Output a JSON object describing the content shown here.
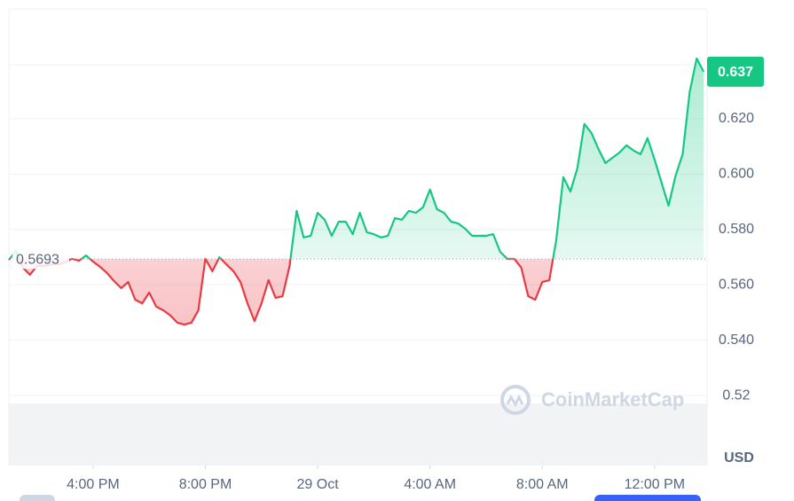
{
  "chart_data": {
    "type": "line",
    "x": [
      13,
      13.25,
      13.5,
      13.75,
      14,
      14.25,
      14.5,
      14.75,
      15,
      15.25,
      15.5,
      15.75,
      16,
      16.25,
      16.5,
      16.75,
      17,
      17.25,
      17.5,
      17.75,
      18,
      18.25,
      18.5,
      18.75,
      19,
      19.25,
      19.5,
      19.75,
      20,
      20.25,
      20.5,
      20.75,
      21,
      21.25,
      21.5,
      21.75,
      22,
      22.25,
      22.5,
      22.75,
      23,
      23.25,
      23.5,
      23.75,
      24,
      24.25,
      24.5,
      24.75,
      25,
      25.25,
      25.5,
      25.75,
      26,
      26.25,
      26.5,
      26.75,
      27,
      27.25,
      27.5,
      27.75,
      28,
      28.25,
      28.5,
      28.75,
      29,
      29.25,
      29.5,
      29.75,
      30,
      30.25,
      30.5,
      30.75,
      31,
      31.25,
      31.5,
      31.75,
      32,
      32.25,
      32.5,
      32.75,
      33,
      33.25,
      33.5,
      33.75,
      34,
      34.25,
      34.5,
      34.75,
      35,
      35.25,
      35.5,
      35.75,
      36,
      36.25,
      36.5,
      36.75,
      37,
      37.25,
      37.5,
      37.75
    ],
    "values": [
      0.569,
      0.5722,
      0.5662,
      0.5636,
      0.5668,
      0.5668,
      0.5674,
      0.5674,
      0.5681,
      0.5694,
      0.5687,
      0.5706,
      0.5684,
      0.5665,
      0.5642,
      0.5613,
      0.5588,
      0.561,
      0.5546,
      0.5533,
      0.5572,
      0.5521,
      0.5508,
      0.5489,
      0.5463,
      0.5456,
      0.5463,
      0.5508,
      0.5694,
      0.5649,
      0.57,
      0.5674,
      0.5649,
      0.561,
      0.5533,
      0.5469,
      0.5533,
      0.5617,
      0.5553,
      0.5559,
      0.5668,
      0.5867,
      0.5771,
      0.5777,
      0.586,
      0.5835,
      0.5777,
      0.5828,
      0.5828,
      0.5783,
      0.586,
      0.579,
      0.5783,
      0.5771,
      0.5777,
      0.5841,
      0.5835,
      0.5867,
      0.586,
      0.588,
      0.5944,
      0.5873,
      0.586,
      0.5828,
      0.5822,
      0.5803,
      0.5777,
      0.5777,
      0.5777,
      0.5783,
      0.5719,
      0.5694,
      0.5694,
      0.5662,
      0.5559,
      0.5546,
      0.561,
      0.5617,
      0.5764,
      0.5989,
      0.5937,
      0.6021,
      0.6181,
      0.6149,
      0.6091,
      0.604,
      0.6059,
      0.6078,
      0.6104,
      0.6085,
      0.6072,
      0.613,
      0.6053,
      0.5969,
      0.5886,
      0.5995,
      0.6072,
      0.6296,
      0.6418,
      0.637
    ],
    "baseline": 0.5693,
    "current_price": 0.637,
    "currency": "USD",
    "watermark": "CoinMarketCap",
    "colors": {
      "up": "#16c784",
      "down": "#ea3943"
    },
    "xlim": [
      13,
      37.87
    ],
    "xticks": [
      {
        "value": 16,
        "label": "4:00 PM"
      },
      {
        "value": 20,
        "label": "8:00 PM"
      },
      {
        "value": 24,
        "label": "29 Oct"
      },
      {
        "value": 28,
        "label": "4:00 AM"
      },
      {
        "value": 32,
        "label": "8:00 AM"
      },
      {
        "value": 36,
        "label": "12:00 PM"
      }
    ],
    "ylim": [
      0.4947,
      0.6597
    ],
    "yticks": [
      0.52,
      {
        "value": 0.54,
        "label": "0.540"
      },
      {
        "value": 0.56,
        "label": "0.560"
      },
      {
        "value": 0.58,
        "label": "0.580"
      },
      {
        "value": 0.6,
        "label": "0.600"
      },
      {
        "value": 0.62,
        "label": "0.620"
      }
    ],
    "grid": true
  }
}
